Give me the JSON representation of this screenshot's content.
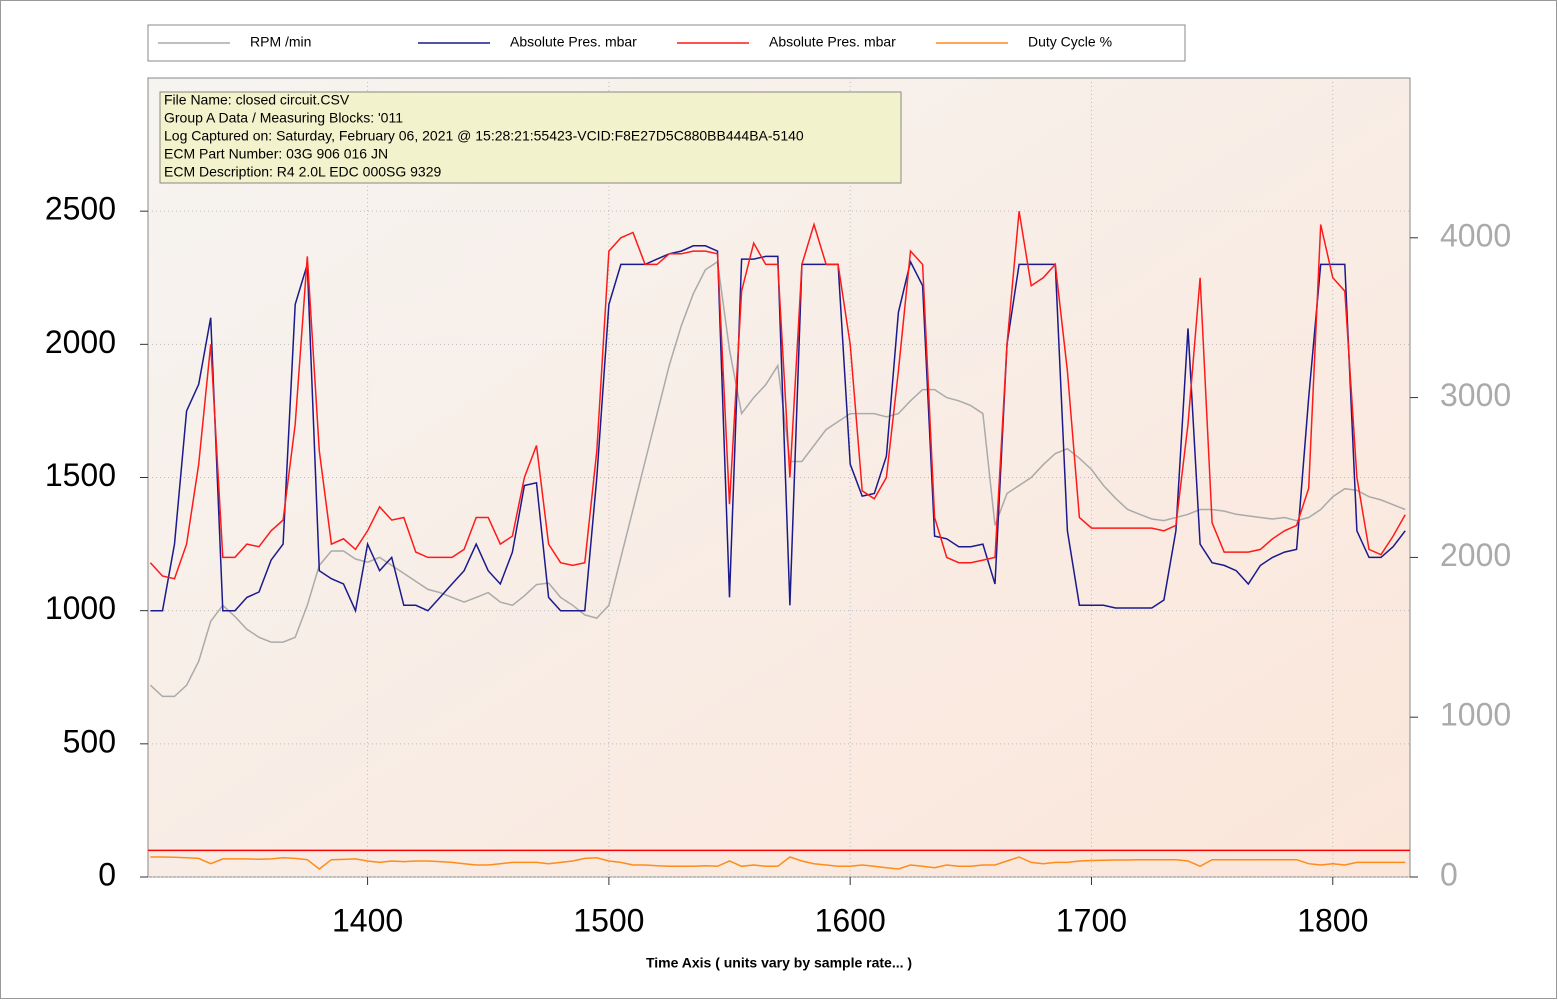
{
  "chart_data": {
    "type": "line",
    "x_label": "Time Axis ( units vary by sample rate... )",
    "info_lines": [
      "File Name: closed circuit.CSV",
      "Group A Data / Measuring Blocks: '011",
      "Log Captured on: Saturday, February 06, 2021 @ 15:28:21:55423-VCID:F8E27D5C880BB444BA-5140",
      "ECM Part Number: 03G 906 016 JN",
      "ECM Description: R4 2.0L EDC  000SG  9329"
    ],
    "x": [
      1310,
      1315,
      1320,
      1325,
      1330,
      1335,
      1340,
      1345,
      1350,
      1355,
      1360,
      1365,
      1370,
      1375,
      1380,
      1385,
      1390,
      1395,
      1400,
      1405,
      1410,
      1415,
      1420,
      1425,
      1430,
      1435,
      1440,
      1445,
      1450,
      1455,
      1460,
      1465,
      1470,
      1475,
      1480,
      1485,
      1490,
      1495,
      1500,
      1505,
      1510,
      1515,
      1520,
      1525,
      1530,
      1535,
      1540,
      1545,
      1550,
      1555,
      1560,
      1565,
      1570,
      1575,
      1580,
      1585,
      1590,
      1595,
      1600,
      1605,
      1610,
      1615,
      1620,
      1625,
      1630,
      1635,
      1640,
      1645,
      1650,
      1655,
      1660,
      1665,
      1670,
      1675,
      1680,
      1685,
      1690,
      1695,
      1700,
      1705,
      1710,
      1715,
      1720,
      1725,
      1730,
      1735,
      1740,
      1745,
      1750,
      1755,
      1760,
      1765,
      1770,
      1775,
      1780,
      1785,
      1790,
      1795,
      1800,
      1805,
      1810,
      1815,
      1820,
      1825,
      1830
    ],
    "series": [
      {
        "name": "RPM /min",
        "color": "#aaaaaa",
        "axis": "y2",
        "values": [
          1200,
          1130,
          1130,
          1200,
          1350,
          1600,
          1700,
          1630,
          1550,
          1500,
          1470,
          1470,
          1500,
          1700,
          1950,
          2040,
          2040,
          1990,
          1970,
          2000,
          1950,
          1900,
          1850,
          1800,
          1780,
          1750,
          1720,
          1750,
          1780,
          1720,
          1700,
          1760,
          1830,
          1840,
          1750,
          1700,
          1640,
          1620,
          1700,
          2000,
          2300,
          2600,
          2900,
          3200,
          3450,
          3650,
          3800,
          3850,
          3300,
          2900,
          3000,
          3080,
          3200,
          2600,
          2600,
          2700,
          2800,
          2850,
          2900,
          2900,
          2900,
          2880,
          2900,
          2980,
          3050,
          3050,
          3000,
          2980,
          2950,
          2900,
          2200,
          2400,
          2450,
          2500,
          2580,
          2650,
          2680,
          2620,
          2550,
          2450,
          2370,
          2300,
          2270,
          2240,
          2230,
          2250,
          2270,
          2300,
          2300,
          2290,
          2270,
          2260,
          2250,
          2240,
          2250,
          2230,
          2250,
          2300,
          2380,
          2430,
          2420,
          2380,
          2360,
          2330,
          2300
        ]
      },
      {
        "name": "Absolute Pres. mbar",
        "color": "#1a1a8c",
        "values": [
          1000,
          1000,
          1250,
          1750,
          1850,
          2100,
          1000,
          1000,
          1050,
          1070,
          1190,
          1250,
          2150,
          2300,
          1150,
          1120,
          1100,
          1000,
          1250,
          1150,
          1200,
          1020,
          1020,
          1000,
          1050,
          1100,
          1150,
          1250,
          1150,
          1100,
          1220,
          1470,
          1480,
          1050,
          1000,
          1000,
          1000,
          1500,
          2150,
          2300,
          2300,
          2300,
          2320,
          2340,
          2350,
          2370,
          2370,
          2350,
          1050,
          2320,
          2320,
          2330,
          2330,
          1020,
          2300,
          2300,
          2300,
          2300,
          1550,
          1430,
          1440,
          1580,
          2120,
          2310,
          2220,
          1280,
          1270,
          1240,
          1240,
          1250,
          1100,
          2000,
          2300,
          2300,
          2300,
          2300,
          1300,
          1020,
          1020,
          1020,
          1010,
          1010,
          1010,
          1010,
          1040,
          1300,
          2060,
          1250,
          1180,
          1170,
          1150,
          1100,
          1170,
          1200,
          1220,
          1230,
          1800,
          2300,
          2300,
          2300,
          1300,
          1200,
          1200,
          1240,
          1300
        ]
      },
      {
        "name": "Absolute Pres. mbar",
        "color": "#ff1a1a",
        "values": [
          1180,
          1130,
          1120,
          1250,
          1550,
          2000,
          1200,
          1200,
          1250,
          1240,
          1300,
          1340,
          1700,
          2330,
          1600,
          1250,
          1270,
          1230,
          1300,
          1390,
          1340,
          1350,
          1220,
          1200,
          1200,
          1200,
          1230,
          1350,
          1350,
          1250,
          1280,
          1500,
          1620,
          1250,
          1180,
          1170,
          1180,
          1600,
          2350,
          2400,
          2420,
          2300,
          2300,
          2340,
          2340,
          2350,
          2350,
          2340,
          1400,
          2200,
          2380,
          2300,
          2300,
          1500,
          2300,
          2450,
          2300,
          2300,
          2000,
          1450,
          1420,
          1500,
          1900,
          2350,
          2300,
          1350,
          1200,
          1180,
          1180,
          1190,
          1200,
          2000,
          2500,
          2220,
          2250,
          2300,
          1900,
          1350,
          1310,
          1310,
          1310,
          1310,
          1310,
          1310,
          1300,
          1320,
          1700,
          2250,
          1330,
          1220,
          1220,
          1220,
          1230,
          1270,
          1300,
          1320,
          1460,
          2450,
          2250,
          2200,
          1500,
          1230,
          1210,
          1280,
          1360
        ]
      },
      {
        "name": "Duty Cycle %",
        "color": "#ff8c1a",
        "values": [
          75,
          75,
          74,
          72,
          70,
          50,
          68,
          68,
          68,
          67,
          68,
          72,
          70,
          65,
          30,
          65,
          66,
          68,
          60,
          55,
          60,
          58,
          60,
          60,
          58,
          55,
          50,
          45,
          45,
          50,
          55,
          55,
          55,
          50,
          55,
          60,
          70,
          72,
          60,
          55,
          45,
          45,
          42,
          40,
          40,
          40,
          42,
          40,
          60,
          40,
          45,
          40,
          40,
          75,
          60,
          50,
          45,
          40,
          40,
          45,
          40,
          35,
          30,
          45,
          40,
          35,
          45,
          40,
          40,
          45,
          45,
          60,
          75,
          55,
          50,
          55,
          55,
          60,
          62,
          63,
          64,
          64,
          65,
          65,
          65,
          65,
          60,
          40,
          65,
          65,
          65,
          65,
          65,
          65,
          65,
          65,
          50,
          45,
          50,
          45,
          55,
          55,
          55,
          55,
          55
        ]
      }
    ],
    "reference_line": {
      "value": 100,
      "color": "#ff0000"
    },
    "xlim": [
      1309,
      1832
    ],
    "xticks": [
      1400,
      1500,
      1600,
      1700,
      1800
    ],
    "ylim": [
      0,
      3000
    ],
    "yticks": [
      0,
      500,
      1000,
      1500,
      2000,
      2500
    ],
    "y2lim": [
      0,
      5000
    ],
    "y2ticks": [
      0,
      1000,
      2000,
      3000,
      4000
    ],
    "grid": true
  }
}
